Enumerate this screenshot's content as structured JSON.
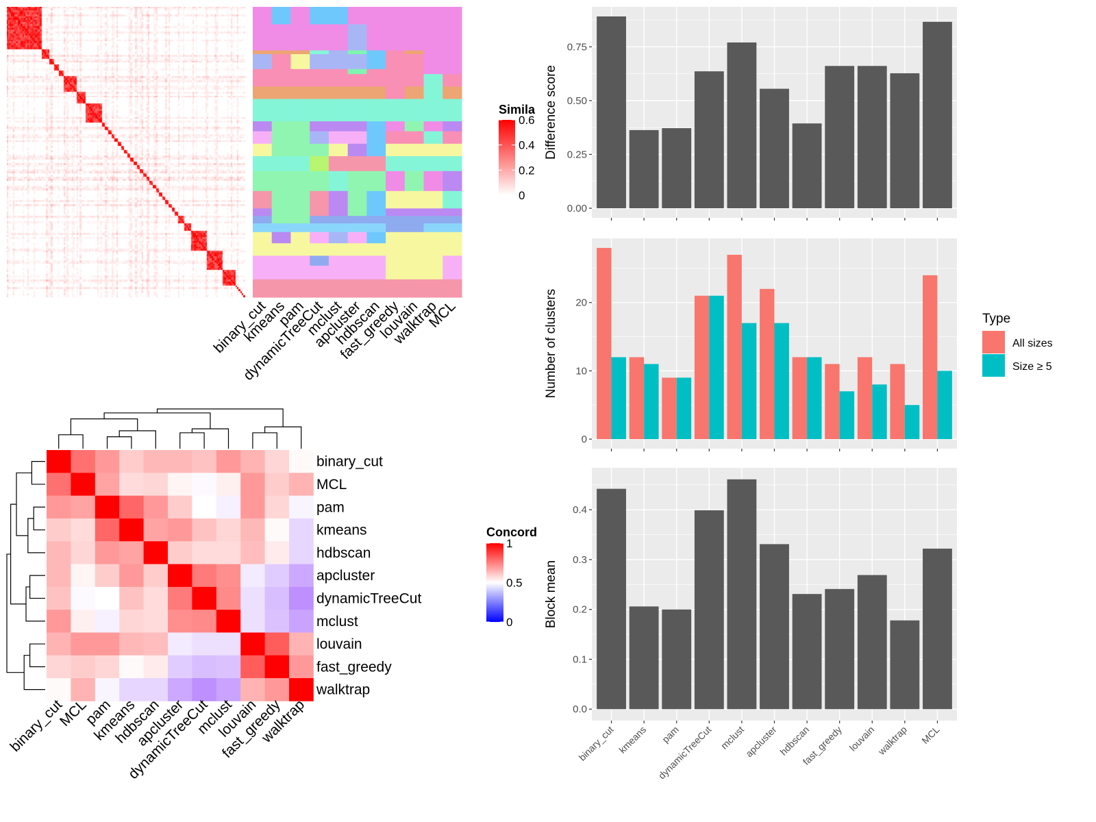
{
  "chart_data": [
    {
      "type": "heatmap",
      "legend_title": "Simila",
      "legend_ticks": [
        "0",
        "0.2",
        "0.4",
        "0.6"
      ],
      "value_range": [
        0,
        0.6
      ],
      "colors": {
        "low": "#ffffff",
        "high": "#ff0000"
      }
    },
    {
      "type": "heatmap",
      "columns": [
        "binary_cut",
        "kmeans",
        "pam",
        "dynamicTreeCut",
        "mclust",
        "apcluster",
        "hdbscan",
        "fast_greedy",
        "louvain",
        "walktrap",
        "MCL"
      ]
    },
    {
      "type": "heatmap",
      "labels": [
        "binary_cut",
        "MCL",
        "pam",
        "kmeans",
        "hdbscan",
        "apcluster",
        "dynamicTreeCut",
        "mclust",
        "louvain",
        "fast_greedy",
        "walktrap"
      ],
      "values": [
        [
          1.0,
          0.78,
          0.7,
          0.6,
          0.64,
          0.64,
          0.62,
          0.7,
          0.65,
          0.58,
          0.51
        ],
        [
          0.78,
          1.0,
          0.68,
          0.57,
          0.58,
          0.52,
          0.49,
          0.53,
          0.7,
          0.6,
          0.65
        ],
        [
          0.7,
          0.68,
          1.0,
          0.8,
          0.7,
          0.6,
          0.5,
          0.47,
          0.7,
          0.58,
          0.48
        ],
        [
          0.6,
          0.57,
          0.8,
          1.0,
          0.68,
          0.7,
          0.62,
          0.58,
          0.64,
          0.51,
          0.42
        ],
        [
          0.64,
          0.58,
          0.7,
          0.68,
          1.0,
          0.6,
          0.57,
          0.57,
          0.63,
          0.54,
          0.42
        ],
        [
          0.64,
          0.52,
          0.6,
          0.7,
          0.6,
          1.0,
          0.76,
          0.72,
          0.46,
          0.4,
          0.33
        ],
        [
          0.62,
          0.49,
          0.5,
          0.62,
          0.57,
          0.76,
          1.0,
          0.73,
          0.44,
          0.37,
          0.28
        ],
        [
          0.7,
          0.53,
          0.47,
          0.58,
          0.57,
          0.72,
          0.73,
          1.0,
          0.44,
          0.38,
          0.32
        ],
        [
          0.65,
          0.7,
          0.7,
          0.64,
          0.63,
          0.46,
          0.44,
          0.44,
          1.0,
          0.82,
          0.65
        ],
        [
          0.58,
          0.6,
          0.58,
          0.51,
          0.54,
          0.4,
          0.37,
          0.38,
          0.82,
          1.0,
          0.7
        ],
        [
          0.51,
          0.65,
          0.48,
          0.42,
          0.42,
          0.33,
          0.28,
          0.32,
          0.65,
          0.7,
          1.0
        ]
      ],
      "dendrogram": {
        "h": 1.0,
        "c": [
          {
            "h": 0.9,
            "c": [
              {
                "h": 0.75,
                "c": [
                  {
                    "h": 0.35,
                    "c": [
                      0,
                      1
                    ]
                  },
                  {
                    "h": 0.45,
                    "c": [
                      {
                        "h": 0.3,
                        "c": [
                          2,
                          3
                        ]
                      },
                      4
                    ]
                  }
                ]
              },
              {
                "h": 0.5,
                "c": [
                  {
                    "h": 0.4,
                    "c": [
                      5,
                      6
                    ]
                  },
                  7
                ]
              }
            ]
          },
          {
            "h": 0.55,
            "c": [
              {
                "h": 0.4,
                "c": [
                  8,
                  9
                ]
              },
              10
            ]
          }
        ]
      },
      "legend_title": "Concord",
      "legend_ticks": [
        "0",
        "0.5",
        "1"
      ],
      "value_range": [
        0,
        1
      ],
      "colors": {
        "low": "#0000ff",
        "mid": "#ffffff",
        "high": "#ff0000"
      }
    },
    {
      "type": "bar",
      "categories": [
        "binary_cut",
        "kmeans",
        "pam",
        "dynamicTreeCut",
        "mclust",
        "apcluster",
        "hdbscan",
        "fast_greedy",
        "louvain",
        "walktrap",
        "MCL"
      ],
      "values": [
        0.891,
        0.363,
        0.372,
        0.636,
        0.77,
        0.555,
        0.394,
        0.661,
        0.661,
        0.627,
        0.866
      ],
      "ylabel": "Difference score",
      "y_ticks": [
        "0.00",
        "0.25",
        "0.50",
        "0.75"
      ],
      "bar_color": "#595959"
    },
    {
      "type": "bar",
      "categories": [
        "binary_cut",
        "kmeans",
        "pam",
        "dynamicTreeCut",
        "mclust",
        "apcluster",
        "hdbscan",
        "fast_greedy",
        "louvain",
        "walktrap",
        "MCL"
      ],
      "series": [
        {
          "name": "All sizes",
          "color": "#f8766d",
          "values": [
            28,
            12,
            9,
            21,
            27,
            22,
            12,
            11,
            12,
            11,
            24
          ]
        },
        {
          "name": "Size ≥ 5",
          "color": "#00bfc4",
          "values": [
            12,
            11,
            9,
            21,
            17,
            17,
            12,
            7,
            8,
            5,
            10
          ]
        }
      ],
      "ylabel": "Number of clusters",
      "y_ticks": [
        "0",
        "10",
        "20"
      ],
      "legend_title": "Type",
      "legend_position": "right"
    },
    {
      "type": "bar",
      "categories": [
        "binary_cut",
        "kmeans",
        "pam",
        "dynamicTreeCut",
        "mclust",
        "apcluster",
        "hdbscan",
        "fast_greedy",
        "louvain",
        "walktrap",
        "MCL"
      ],
      "values": [
        0.442,
        0.206,
        0.2,
        0.399,
        0.461,
        0.331,
        0.231,
        0.241,
        0.269,
        0.178,
        0.322
      ],
      "ylabel": "Block mean",
      "y_ticks": [
        "0.0",
        "0.1",
        "0.2",
        "0.3",
        "0.4"
      ],
      "bar_color": "#595959"
    }
  ]
}
